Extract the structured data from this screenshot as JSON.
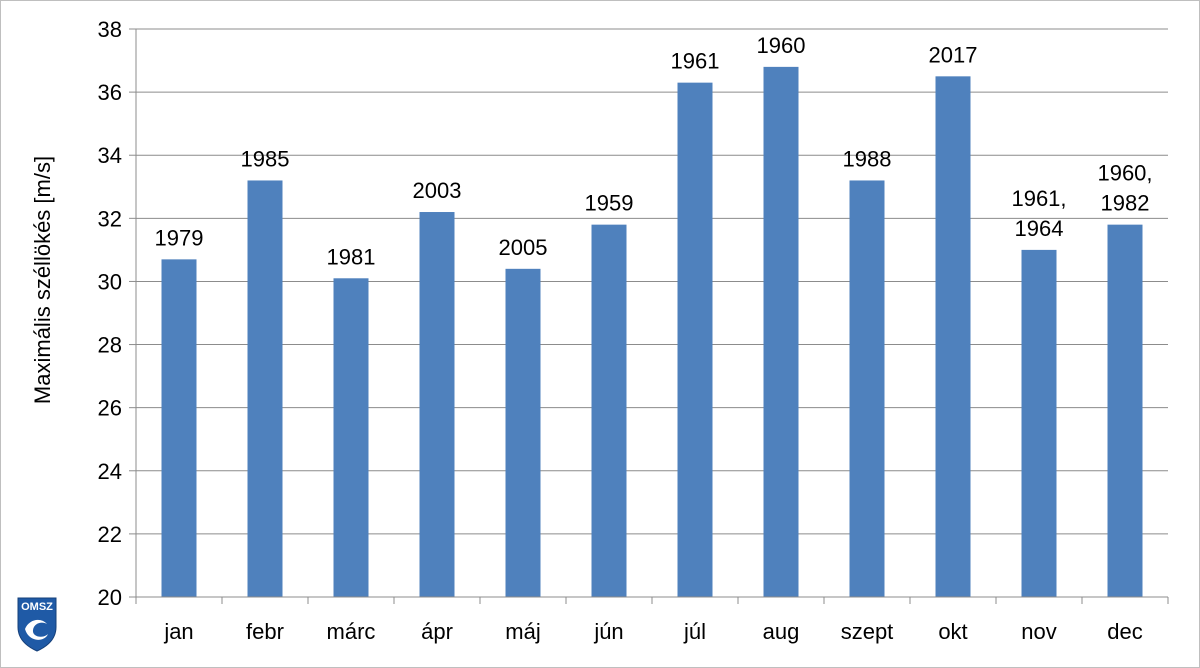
{
  "chart_data": {
    "type": "bar",
    "ylabel": "Maximális széllökés [m/s]",
    "xlabel": "",
    "ylim": [
      20,
      38
    ],
    "yticks": [
      20,
      22,
      24,
      26,
      28,
      30,
      32,
      34,
      36,
      38
    ],
    "grid": true,
    "legend": "none",
    "bar_color": "#4F81BD",
    "categories": [
      "jan",
      "febr",
      "márc",
      "ápr",
      "máj",
      "jún",
      "júl",
      "aug",
      "szept",
      "okt",
      "nov",
      "dec"
    ],
    "values": [
      30.7,
      33.2,
      30.1,
      32.2,
      30.4,
      31.8,
      36.3,
      36.8,
      33.2,
      36.5,
      31.0,
      31.8
    ],
    "data_labels": [
      [
        "1979"
      ],
      [
        "1985"
      ],
      [
        "1981"
      ],
      [
        "2003"
      ],
      [
        "2005"
      ],
      [
        "1959"
      ],
      [
        "1961"
      ],
      [
        "1960"
      ],
      [
        "1988"
      ],
      [
        "2017"
      ],
      [
        "1961,",
        "1964"
      ],
      [
        "1960,",
        "1982"
      ]
    ]
  },
  "logo": {
    "text": "OMSZ",
    "color": "#1F5AA6"
  }
}
